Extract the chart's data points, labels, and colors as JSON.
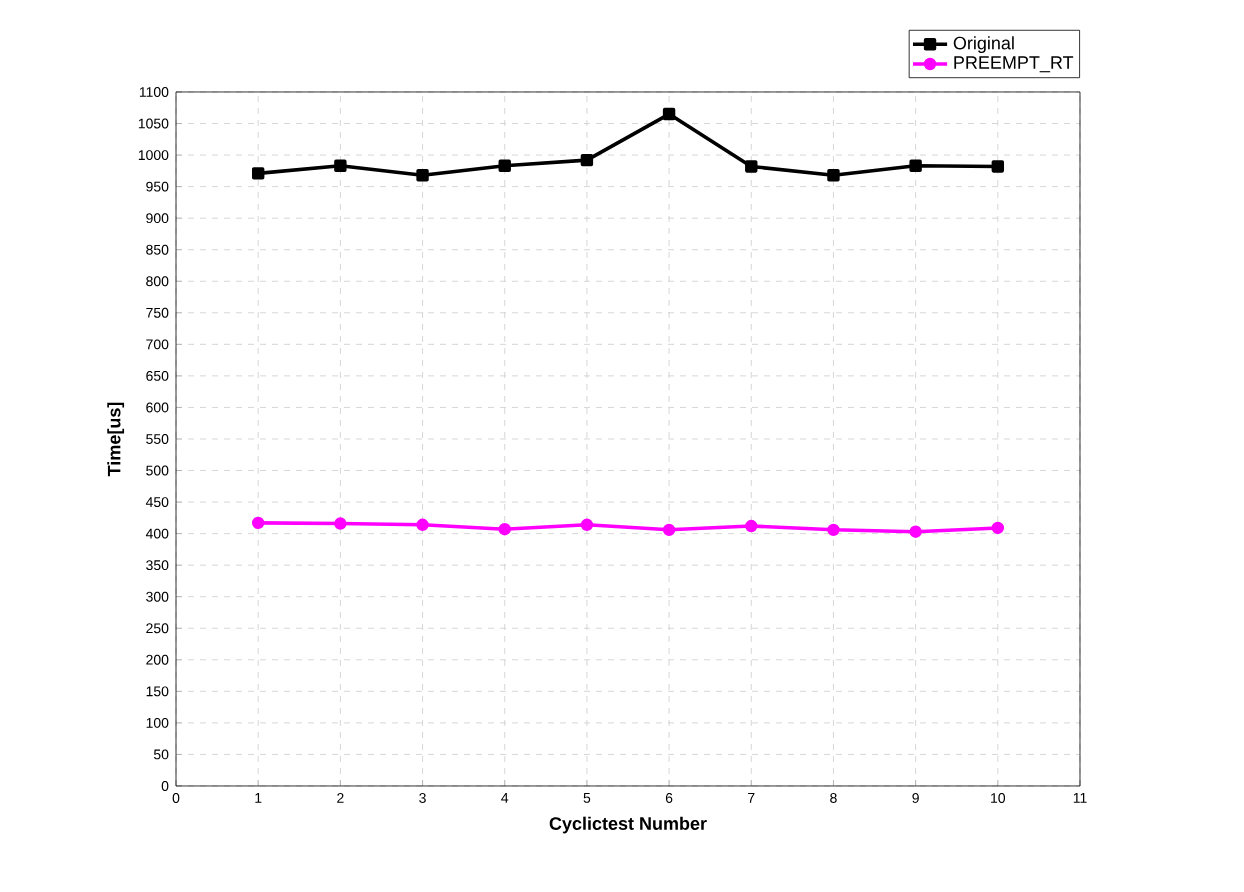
{
  "chart_data": {
    "type": "line",
    "xlabel": "Cyclictest Number",
    "ylabel": "Time[us]",
    "x": [
      1,
      2,
      3,
      4,
      5,
      6,
      7,
      8,
      9,
      10
    ],
    "series": [
      {
        "name": "Original",
        "color": "#000000",
        "marker": "square",
        "values": [
          971,
          983,
          968,
          983,
          992,
          1065,
          982,
          968,
          983,
          982
        ]
      },
      {
        "name": "PREEMPT_RT",
        "color": "#ff00ff",
        "marker": "circle",
        "values": [
          417,
          416,
          414,
          407,
          414,
          406,
          412,
          406,
          403,
          409
        ]
      }
    ],
    "xlim": [
      0,
      11
    ],
    "xticks": [
      0,
      1,
      2,
      3,
      4,
      5,
      6,
      7,
      8,
      9,
      10,
      11
    ],
    "ylim": [
      0,
      1100
    ],
    "yticks": [
      0,
      50,
      100,
      150,
      200,
      250,
      300,
      350,
      400,
      450,
      500,
      550,
      600,
      650,
      700,
      750,
      800,
      850,
      900,
      950,
      1000,
      1050,
      1100
    ],
    "grid": true,
    "legend": "top right",
    "line_style": "solid"
  }
}
